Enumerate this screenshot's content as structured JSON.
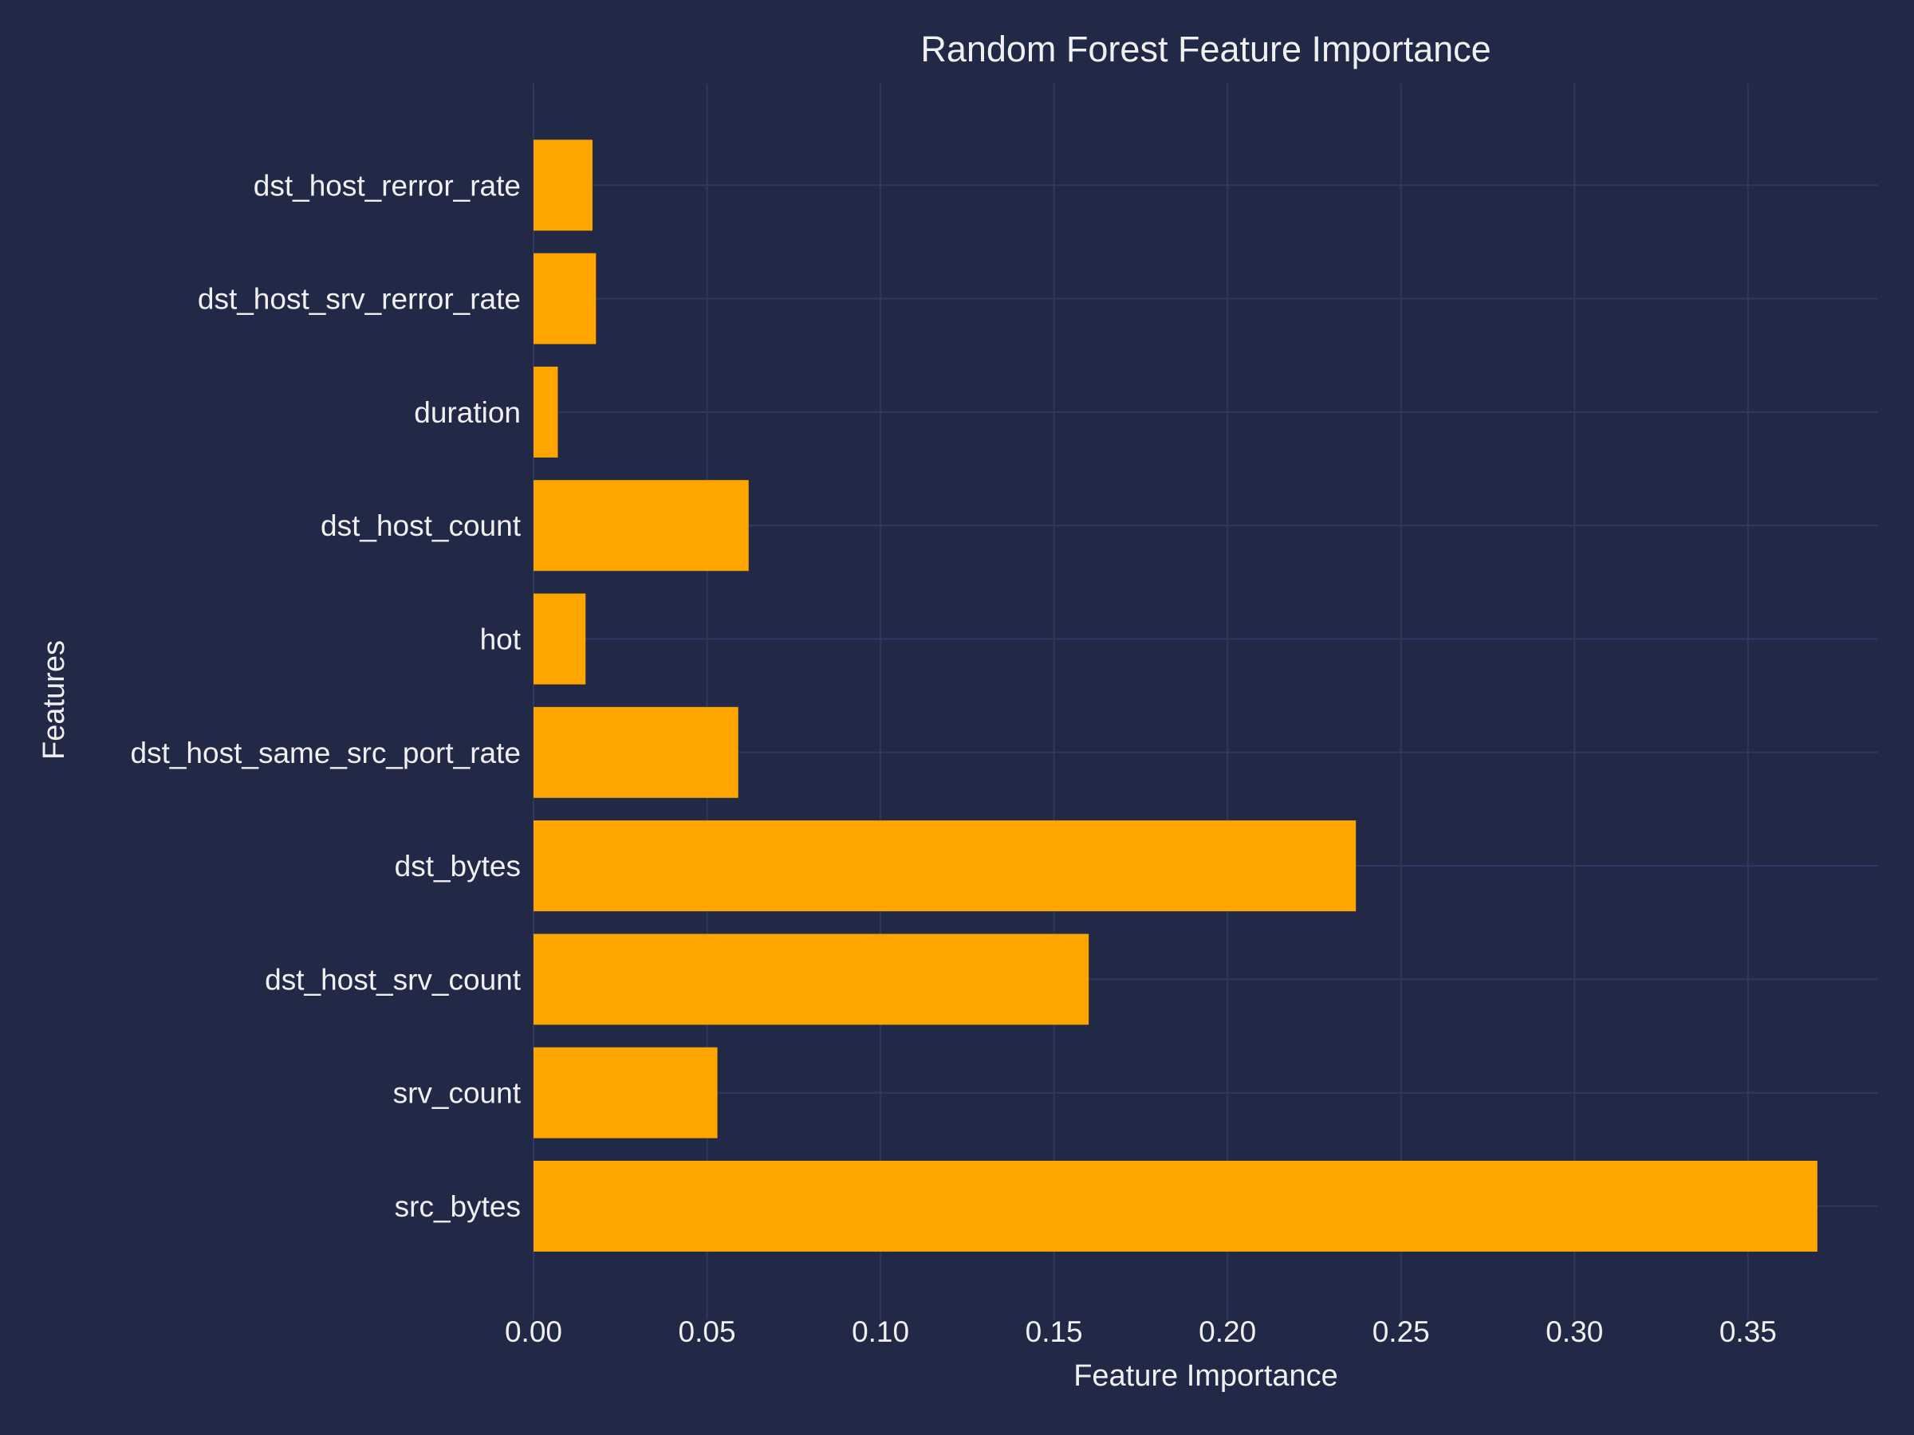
{
  "chart_data": {
    "type": "bar",
    "orientation": "horizontal",
    "title": "Random Forest Feature Importance",
    "xlabel": "Feature Importance",
    "ylabel": "Features",
    "xlim": [
      0,
      0.3875
    ],
    "xticks": [
      0.0,
      0.05,
      0.1,
      0.15,
      0.2,
      0.25,
      0.3,
      0.35
    ],
    "xtick_labels": [
      "0.00",
      "0.05",
      "0.10",
      "0.15",
      "0.20",
      "0.25",
      "0.30",
      "0.35"
    ],
    "grid": true,
    "categories": [
      "src_bytes",
      "srv_count",
      "dst_host_srv_count",
      "dst_bytes",
      "dst_host_same_src_port_rate",
      "hot",
      "dst_host_count",
      "duration",
      "dst_host_srv_rerror_rate",
      "dst_host_rerror_rate"
    ],
    "values": [
      0.37,
      0.053,
      0.16,
      0.237,
      0.059,
      0.015,
      0.062,
      0.007,
      0.018,
      0.017
    ],
    "colors": {
      "background": "#222947",
      "bar": "#ffa500",
      "grid": "#2e3863",
      "text": "#f0f0f0"
    }
  }
}
